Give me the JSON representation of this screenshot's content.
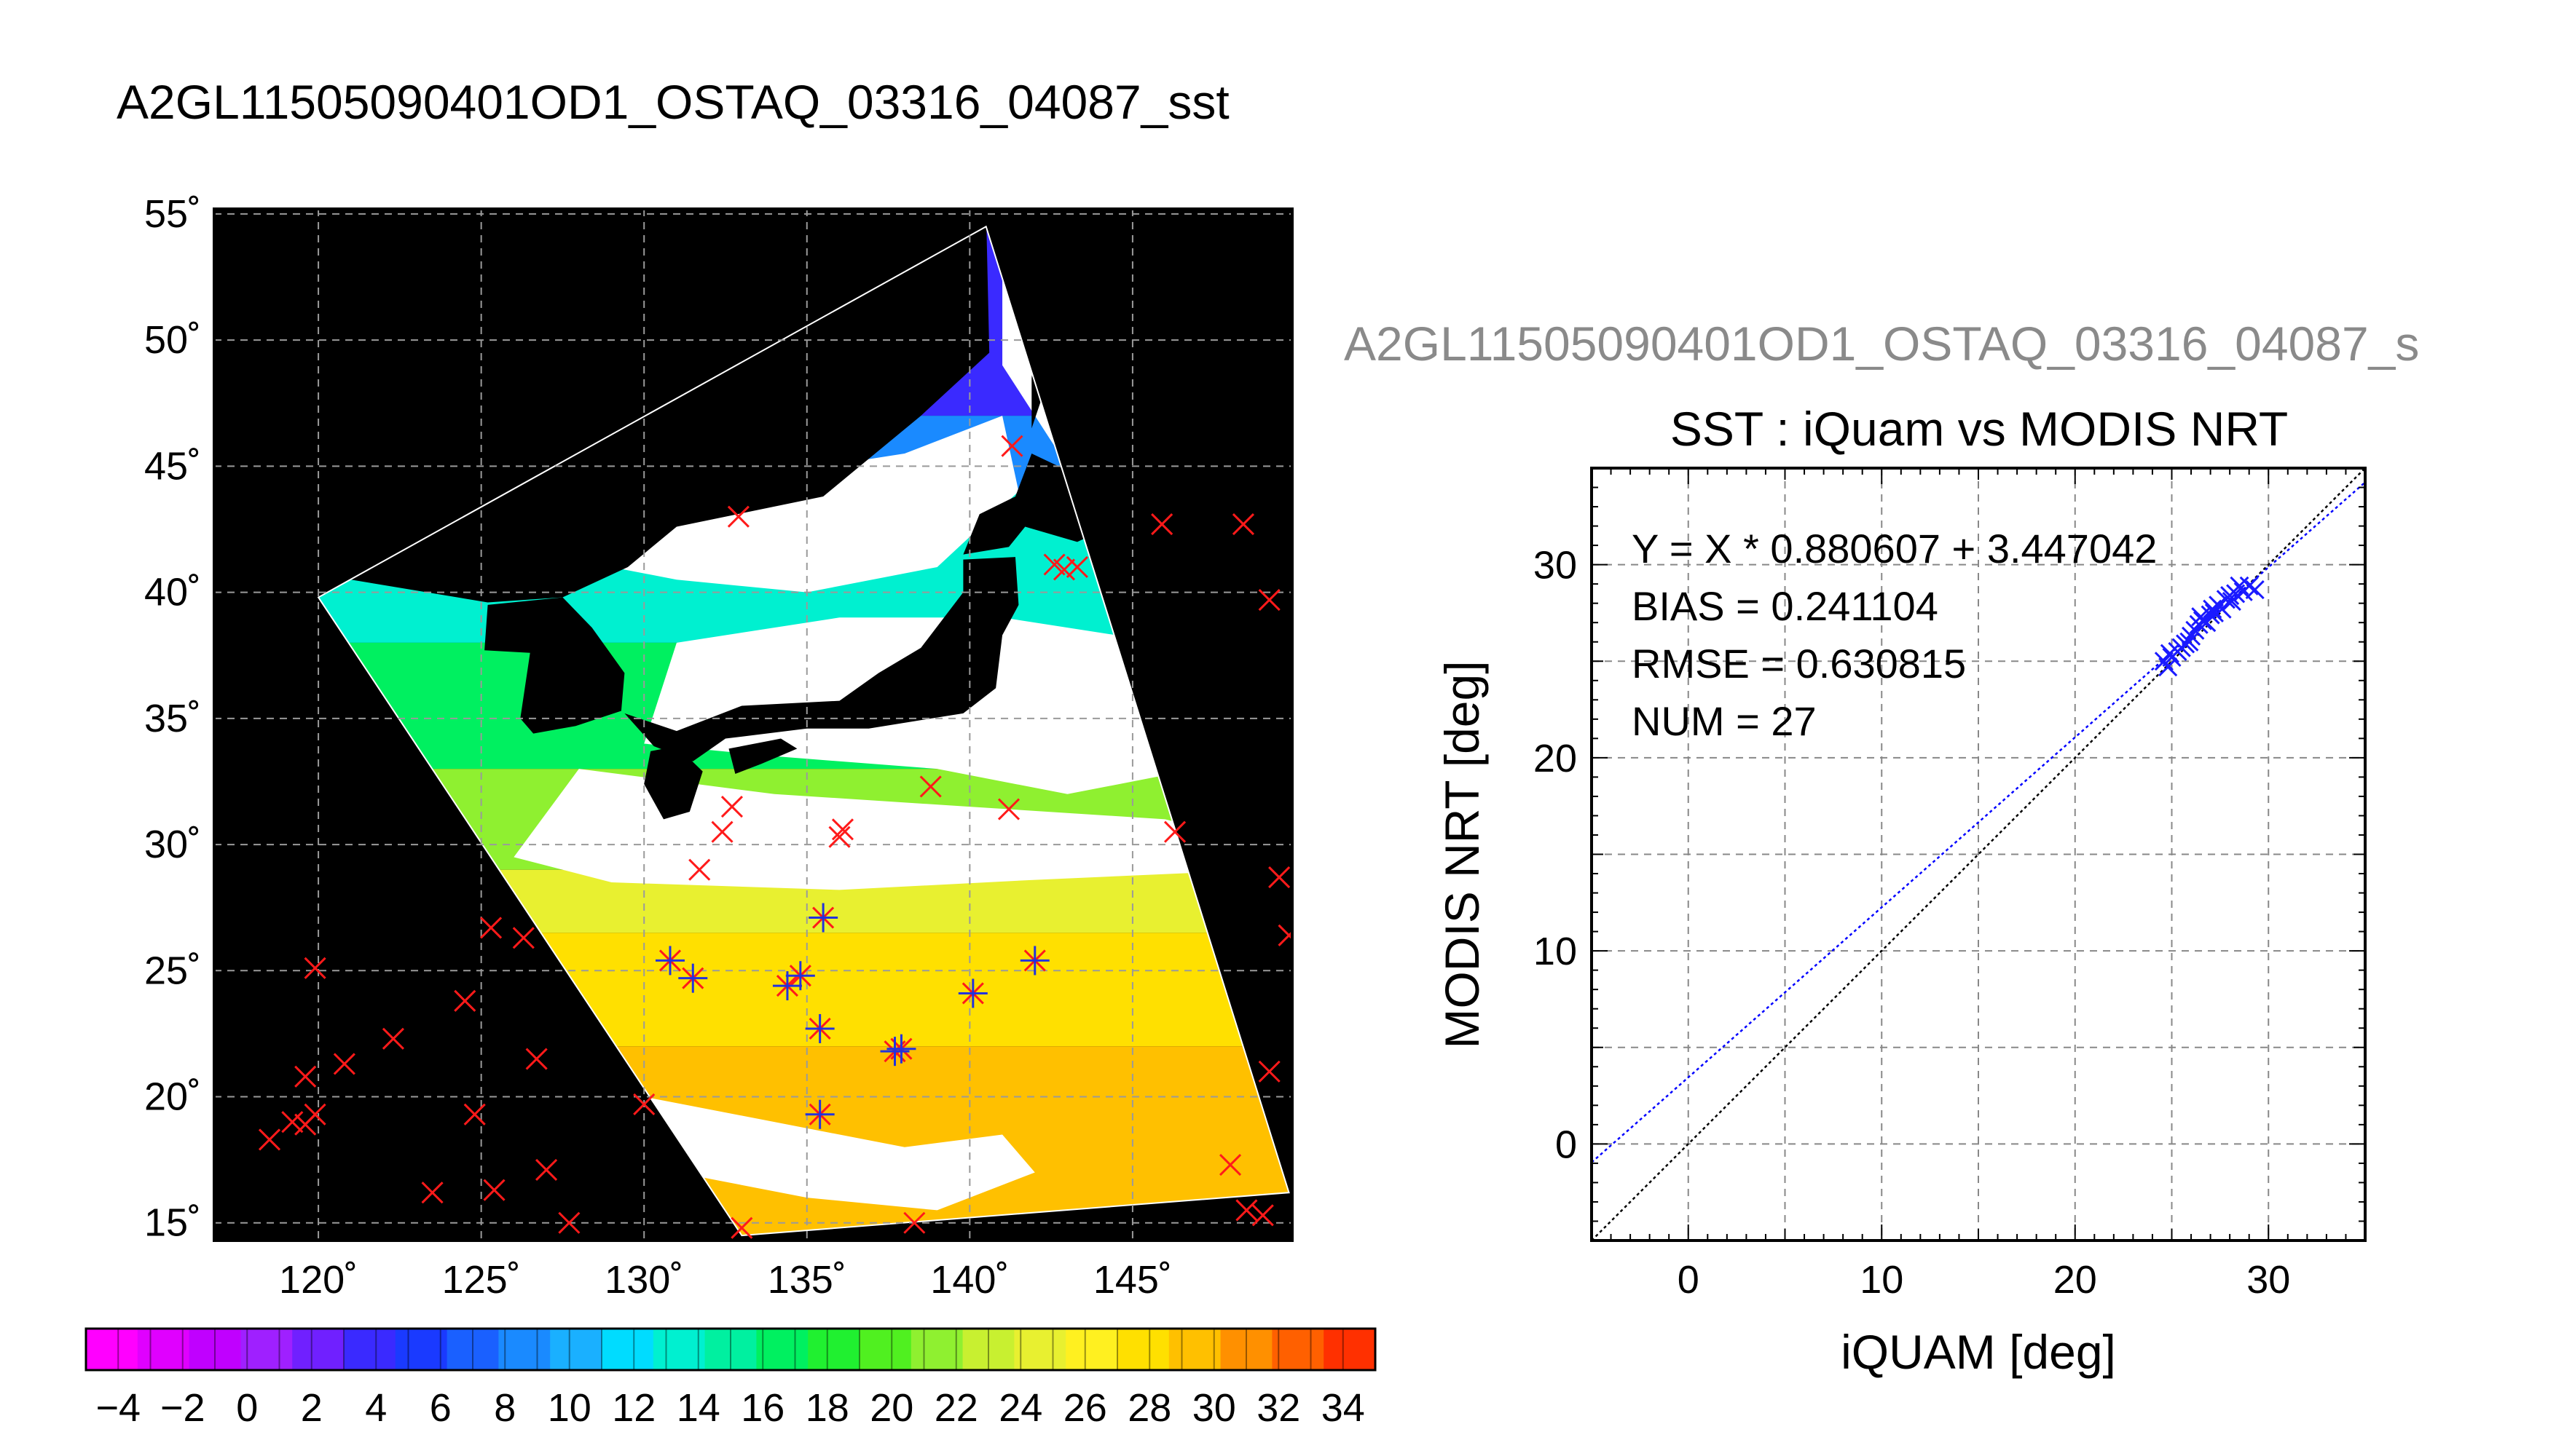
{
  "title_main": "A2GL11505090401OD1_OSTAQ_03316_04087_sst",
  "title_secondary": "A2GL11505090401OD1_OSTAQ_03316_04087_s",
  "colors": {
    "land": "#000000",
    "cloud": "#ffffff",
    "buoy_marker": "#ff1a1a",
    "match_marker": "#2233dd",
    "regression_line": "#0000ff",
    "identity_line": "#000000",
    "grid": "#888888"
  },
  "chart_data": [
    {
      "type": "map",
      "title": "A2GL11505090401OD1_OSTAQ_03316_04087_sst",
      "xlim": [
        116.8,
        149.9
      ],
      "ylim": [
        14.3,
        55.2
      ],
      "lon_ticks": [
        120,
        125,
        130,
        135,
        140,
        145
      ],
      "lat_ticks": [
        15,
        20,
        25,
        30,
        35,
        40,
        45,
        50,
        55
      ],
      "lon_tick_labels": [
        "120˚",
        "125˚",
        "130˚",
        "135˚",
        "140˚",
        "145˚"
      ],
      "lat_tick_labels": [
        "15˚",
        "20˚",
        "25˚",
        "30˚",
        "35˚",
        "40˚",
        "45˚",
        "50˚",
        "55˚"
      ],
      "swath_corners": [
        [
          140.5,
          54.5
        ],
        [
          149.8,
          16.2
        ],
        [
          133.0,
          14.5
        ],
        [
          120.0,
          39.8
        ]
      ],
      "buoy_points": [
        [
          118.5,
          18.3
        ],
        [
          119.2,
          19.0
        ],
        [
          119.6,
          18.9
        ],
        [
          119.9,
          19.3
        ],
        [
          119.6,
          20.8
        ],
        [
          120.8,
          21.3
        ],
        [
          119.9,
          25.1
        ],
        [
          122.3,
          22.3
        ],
        [
          123.5,
          16.2
        ],
        [
          124.5,
          23.8
        ],
        [
          124.8,
          19.3
        ],
        [
          125.3,
          26.7
        ],
        [
          125.4,
          16.3
        ],
        [
          126.3,
          26.3
        ],
        [
          126.7,
          21.5
        ],
        [
          127.0,
          17.1
        ],
        [
          127.7,
          15.0
        ],
        [
          130.0,
          19.7
        ],
        [
          130.8,
          25.4
        ],
        [
          131.5,
          24.7
        ],
        [
          131.7,
          29.0
        ],
        [
          132.4,
          30.5
        ],
        [
          132.7,
          31.5
        ],
        [
          133.0,
          14.8
        ],
        [
          134.4,
          24.4
        ],
        [
          134.8,
          24.8
        ],
        [
          135.5,
          27.1
        ],
        [
          135.4,
          22.7
        ],
        [
          135.4,
          19.3
        ],
        [
          136.0,
          30.3
        ],
        [
          136.1,
          30.6
        ],
        [
          137.7,
          21.8
        ],
        [
          137.9,
          21.9
        ],
        [
          138.3,
          15.0
        ],
        [
          138.8,
          32.3
        ],
        [
          140.1,
          24.1
        ],
        [
          141.2,
          31.4
        ],
        [
          142.0,
          25.4
        ],
        [
          141.3,
          45.8
        ],
        [
          142.6,
          41.1
        ],
        [
          142.9,
          40.9
        ],
        [
          143.3,
          41.0
        ],
        [
          132.9,
          43.0
        ],
        [
          145.9,
          42.7
        ],
        [
          146.3,
          30.5
        ],
        [
          148.4,
          42.7
        ],
        [
          149.2,
          39.7
        ],
        [
          149.5,
          28.7
        ],
        [
          149.8,
          26.4
        ],
        [
          149.2,
          21.0
        ],
        [
          148.0,
          17.3
        ],
        [
          148.5,
          15.5
        ],
        [
          149.0,
          15.3
        ]
      ],
      "matched_points": [
        [
          130.8,
          25.4
        ],
        [
          131.5,
          24.7
        ],
        [
          134.4,
          24.4
        ],
        [
          134.8,
          24.8
        ],
        [
          135.5,
          27.1
        ],
        [
          135.4,
          22.7
        ],
        [
          135.4,
          19.3
        ],
        [
          137.7,
          21.8
        ],
        [
          137.9,
          21.9
        ],
        [
          140.1,
          24.1
        ],
        [
          142.0,
          25.4
        ]
      ],
      "colorbar": {
        "min": -5,
        "max": 35,
        "step": 2,
        "tick_values": [
          -4,
          -2,
          0,
          2,
          4,
          6,
          8,
          10,
          12,
          14,
          16,
          18,
          20,
          22,
          24,
          26,
          28,
          30,
          32,
          34
        ],
        "tick_labels": [
          "−4",
          "−2",
          "0",
          "2",
          "4",
          "6",
          "8",
          "10",
          "12",
          "14",
          "16",
          "18",
          "20",
          "22",
          "24",
          "26",
          "28",
          "30",
          "32",
          "34"
        ],
        "colors": [
          "#ff00ff",
          "#e000ff",
          "#c000ff",
          "#9f20ff",
          "#7020ff",
          "#3a2aff",
          "#1a3aff",
          "#1a60ff",
          "#1a8aff",
          "#1ab0ff",
          "#00dcff",
          "#00f0d0",
          "#00f0a0",
          "#00f060",
          "#20f030",
          "#50f020",
          "#8ff030",
          "#c8f030",
          "#e8f030",
          "#fff020",
          "#ffe000",
          "#ffc000",
          "#ff9000",
          "#ff6000",
          "#ff3000"
        ]
      },
      "sst_bands": [
        {
          "lat_max": 55.0,
          "lat_min": 47.0,
          "value": 4
        },
        {
          "lat_max": 47.0,
          "lat_min": 44.0,
          "value": 8
        },
        {
          "lat_max": 44.0,
          "lat_min": 38.0,
          "value": 13
        },
        {
          "lat_max": 38.0,
          "lat_min": 33.0,
          "value": 17
        },
        {
          "lat_max": 33.0,
          "lat_min": 29.0,
          "value": 22
        },
        {
          "lat_max": 29.0,
          "lat_min": 26.5,
          "value": 25
        },
        {
          "lat_max": 26.5,
          "lat_min": 22.0,
          "value": 28
        },
        {
          "lat_max": 22.0,
          "lat_min": 14.0,
          "value": 29
        }
      ]
    },
    {
      "type": "scatter",
      "title": "SST : iQuam vs MODIS NRT",
      "xlabel": "iQUAM [deg]",
      "ylabel": "MODIS NRT [deg]",
      "xlim": [
        -5,
        35
      ],
      "ylim": [
        -5,
        35
      ],
      "x_ticks": [
        0,
        10,
        20,
        30
      ],
      "y_ticks": [
        0,
        10,
        20,
        30
      ],
      "tick_labels": [
        "0",
        "10",
        "20",
        "30"
      ],
      "grid": true,
      "stats": [
        "Y = X * 0.880607 + 3.447042",
        "BIAS = 0.241104",
        "RMSE = 0.630815",
        "NUM = 27"
      ],
      "regression": {
        "slope": 0.880607,
        "intercept": 3.447042
      },
      "points": [
        [
          24.6,
          25.0
        ],
        [
          24.8,
          24.7
        ],
        [
          25.0,
          25.2
        ],
        [
          25.3,
          25.5
        ],
        [
          25.5,
          25.7
        ],
        [
          25.7,
          25.9
        ],
        [
          26.0,
          26.3
        ],
        [
          26.2,
          26.6
        ],
        [
          26.4,
          26.9
        ],
        [
          26.6,
          27.1
        ],
        [
          26.8,
          27.0
        ],
        [
          27.0,
          27.4
        ],
        [
          27.1,
          27.7
        ],
        [
          27.4,
          27.9
        ],
        [
          27.6,
          27.7
        ],
        [
          27.8,
          28.2
        ],
        [
          28.1,
          28.1
        ],
        [
          28.3,
          28.5
        ],
        [
          28.5,
          28.9
        ],
        [
          28.7,
          28.6
        ],
        [
          29.0,
          28.9
        ],
        [
          29.3,
          28.7
        ],
        [
          26.5,
          27.3
        ],
        [
          27.2,
          27.5
        ],
        [
          25.9,
          26.0
        ],
        [
          28.0,
          28.4
        ],
        [
          24.9,
          25.4
        ]
      ]
    }
  ]
}
